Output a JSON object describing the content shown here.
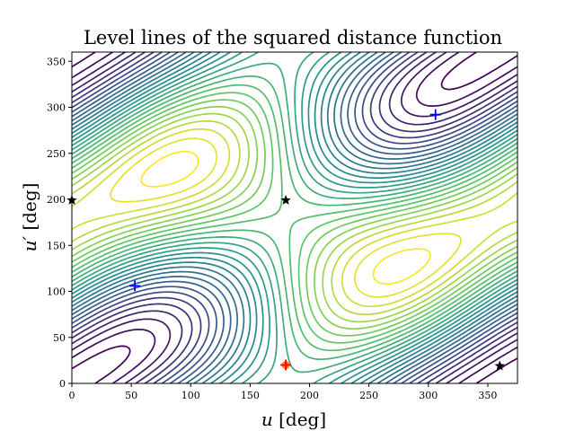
{
  "chart_data": {
    "type": "contour",
    "title": "Level lines of the squared distance function",
    "xlabel_var": "u",
    "xlabel_unit": " [deg]",
    "ylabel_var": "u′",
    "ylabel_unit": " [deg]",
    "xlim": [
      0,
      375
    ],
    "ylim": [
      0,
      360
    ],
    "x_ticks": [
      0,
      50,
      100,
      150,
      200,
      250,
      300,
      350
    ],
    "y_ticks": [
      0,
      50,
      100,
      150,
      200,
      250,
      300,
      350
    ],
    "colormap": [
      "#440154",
      "#3b528b",
      "#21908d",
      "#5dc863",
      "#fde725"
    ],
    "contour_levels": 28,
    "minima": [
      {
        "x": 53,
        "y": 106,
        "color": "#0000ff",
        "marker": "plus"
      },
      {
        "x": 306,
        "y": 292,
        "color": "#0000ff",
        "marker": "plus"
      }
    ],
    "maximum": {
      "x": 180,
      "y": 20,
      "color": "#ff0000",
      "marker": "plus"
    },
    "saddles": [
      {
        "x": 180,
        "y": 199,
        "color": "#000000",
        "marker": "star"
      },
      {
        "x": 0,
        "y": 199,
        "color": "#000000",
        "marker": "star"
      },
      {
        "x": 360,
        "y": 19,
        "color": "#000000",
        "marker": "star"
      }
    ],
    "grid": false
  }
}
